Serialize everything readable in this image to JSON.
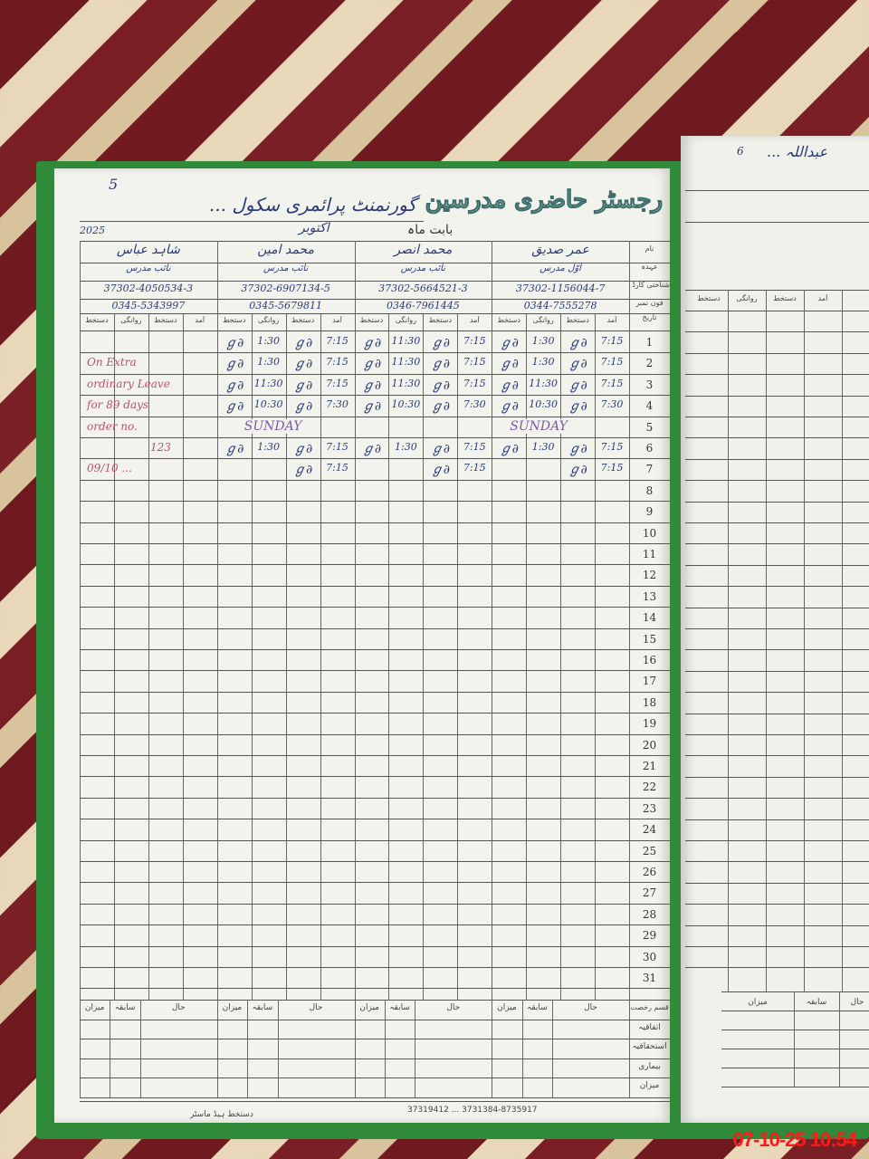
{
  "register": {
    "title": "رجسٹر حاضری مدرسین",
    "school": "گورنمنٹ پرائمری سکول ...",
    "month_label": "بابت ماہ",
    "month": "اکتوبر",
    "year": "2025",
    "page_no": "5",
    "row_labels": {
      "name": "نام",
      "designation": "عہدہ",
      "cnic": "شناختی کارڈ نمبر",
      "phone": "فون نمبر",
      "date": "تاریخ"
    },
    "sub_columns": [
      "آمد",
      "دستخط",
      "روانگی",
      "دستخط"
    ],
    "teachers": [
      {
        "name": "عمر صدیق",
        "designation": "اوّل مدرس",
        "cnic": "37302-1156044-7",
        "phone": "0344-7555278",
        "entries": [
          {
            "day": 1,
            "arrival": "7:15",
            "departure": "1:30",
            "signed": true
          },
          {
            "day": 2,
            "arrival": "7:15",
            "departure": "1:30",
            "signed": true
          },
          {
            "day": 3,
            "arrival": "7:15",
            "departure": "11:30",
            "signed": true
          },
          {
            "day": 4,
            "arrival": "7:30",
            "departure": "10:30",
            "signed": true
          },
          {
            "day": 6,
            "arrival": "7:15",
            "departure": "1:30",
            "signed": true
          },
          {
            "day": 7,
            "arrival": "7:15",
            "departure": "",
            "signed": true
          }
        ]
      },
      {
        "name": "محمد انصر",
        "designation": "نائب مدرس",
        "cnic": "37302-5664521-3",
        "phone": "0346-7961445",
        "entries": [
          {
            "day": 1,
            "arrival": "7:15",
            "departure": "11:30",
            "signed": true
          },
          {
            "day": 2,
            "arrival": "7:15",
            "departure": "11:30",
            "signed": true
          },
          {
            "day": 3,
            "arrival": "7:15",
            "departure": "11:30",
            "signed": true
          },
          {
            "day": 4,
            "arrival": "7:30",
            "departure": "10:30",
            "signed": true
          },
          {
            "day": 6,
            "arrival": "7:15",
            "departure": "1:30",
            "signed": true
          },
          {
            "day": 7,
            "arrival": "7:15",
            "departure": "",
            "signed": true
          }
        ]
      },
      {
        "name": "محمد امین",
        "designation": "نائب مدرس",
        "cnic": "37302-6907134-5",
        "phone": "0345-5679811",
        "entries": [
          {
            "day": 1,
            "arrival": "7:15",
            "departure": "1:30",
            "signed": true
          },
          {
            "day": 2,
            "arrival": "7:15",
            "departure": "1:30",
            "signed": true
          },
          {
            "day": 3,
            "arrival": "7:15",
            "departure": "11:30",
            "signed": true
          },
          {
            "day": 4,
            "arrival": "7:30",
            "departure": "10:30",
            "signed": true
          },
          {
            "day": 6,
            "arrival": "7:15",
            "departure": "1:30",
            "signed": true
          },
          {
            "day": 7,
            "arrival": "7:15",
            "departure": "",
            "signed": true
          }
        ]
      },
      {
        "name": "شاہد عباس",
        "designation": "نائب مدرس",
        "cnic": "37302-4050534-3",
        "phone": "0345-5343997",
        "entries": []
      }
    ],
    "sunday_day": 5,
    "sunday_label": "SUNDAY",
    "leave_note": [
      "On Extra",
      "ordinary Leave",
      "for 89 days",
      "order no.",
      "123",
      "09/10 ..."
    ],
    "days": [
      1,
      2,
      3,
      4,
      5,
      6,
      7,
      8,
      9,
      10,
      11,
      12,
      13,
      14,
      15,
      16,
      17,
      18,
      19,
      20,
      21,
      22,
      23,
      24,
      25,
      26,
      27,
      28,
      29,
      30,
      31
    ],
    "summary": {
      "header": "قسم رخصت",
      "columns": [
        "حال",
        "سابقہ",
        "میزان"
      ],
      "rows": [
        "اتفاقیہ",
        "استحقاقیہ",
        "بیماری",
        "میزان"
      ]
    },
    "footer_print": "37319412 ... 3731384-8735917",
    "footer_sign_label": "دستخط ہیڈ ماسٹر"
  },
  "right_page": {
    "name": "عبداللہ ...",
    "page_no": "6",
    "designation": "...",
    "sub_columns": [
      "دستخط",
      "روانگی",
      "دستخط",
      "آمد"
    ],
    "summary_columns": [
      "میزان",
      "سابقہ",
      "حال"
    ]
  },
  "camera_timestamp": "07-10-25  10:54",
  "colors": {
    "ink": "#2b3a7a",
    "red_note": "#c0506a",
    "cover": "#2f8a3a",
    "timestamp": "#ff1a1a"
  }
}
